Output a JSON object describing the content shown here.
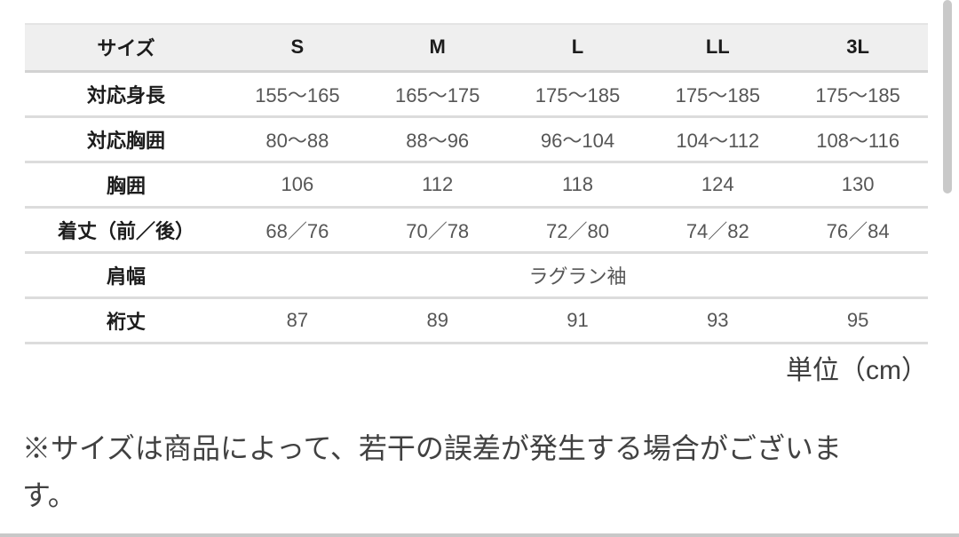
{
  "table": {
    "header": {
      "size_label": "サイズ",
      "columns": [
        "S",
        "M",
        "L",
        "LL",
        "3L"
      ]
    },
    "rows": [
      {
        "label": "対応身長",
        "values": [
          "155〜165",
          "165〜175",
          "175〜185",
          "175〜185",
          "175〜185"
        ]
      },
      {
        "label": "対応胸囲",
        "values": [
          "80〜88",
          "88〜96",
          "96〜104",
          "104〜112",
          "108〜116"
        ]
      },
      {
        "label": "胸囲",
        "values": [
          "106",
          "112",
          "118",
          "124",
          "130"
        ]
      },
      {
        "label": "着丈（前／後）",
        "values": [
          "68／76",
          "70／78",
          "72／80",
          "74／82",
          "76／84"
        ]
      },
      {
        "label": "肩幅",
        "merged_value": "ラグラン袖"
      },
      {
        "label": "裄丈",
        "values": [
          "87",
          "89",
          "91",
          "93",
          "95"
        ]
      }
    ],
    "unit_label": "単位（cm）"
  },
  "footnote": {
    "line1": "※サイズは商品によって、若干の誤差が発生する場合がございま",
    "line2": "す。"
  },
  "colors": {
    "header_bg": "#efefef",
    "divider": "#dcdcdc",
    "scrollbar_thumb": "#c9c9c9",
    "value_text": "#565656"
  }
}
